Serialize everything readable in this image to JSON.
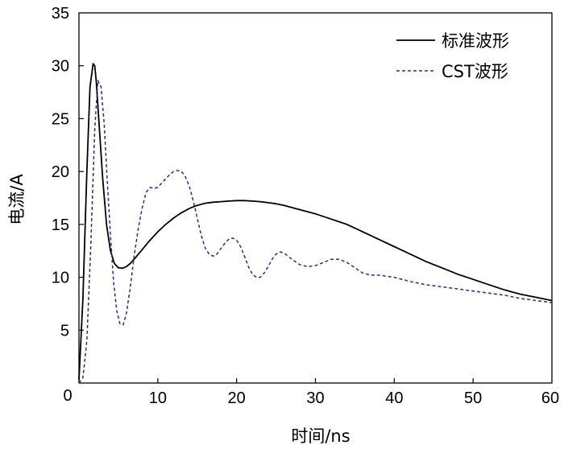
{
  "chart_data": {
    "type": "line",
    "title": "",
    "xlabel": "时间/ns",
    "ylabel": "电流/A",
    "xlim": [
      0,
      60
    ],
    "ylim": [
      0,
      35
    ],
    "xticks": [
      10,
      20,
      30,
      40,
      50,
      60
    ],
    "yticks": [
      0,
      5,
      10,
      15,
      20,
      25,
      30,
      35
    ],
    "grid": false,
    "legend_position": "top-right",
    "series": [
      {
        "name": "标准波形",
        "style": "solid",
        "color": "#000000",
        "x": [
          0,
          0.5,
          1.0,
          1.4,
          1.8,
          2.0,
          2.2,
          2.6,
          3.0,
          3.5,
          4.0,
          4.5,
          5.0,
          5.5,
          6.0,
          6.5,
          7.0,
          8,
          9,
          10,
          11,
          12,
          13,
          14,
          15,
          16,
          17,
          18,
          19,
          20,
          21,
          22,
          23,
          24,
          25,
          26,
          28,
          30,
          32,
          34,
          36,
          38,
          40,
          42,
          44,
          46,
          48,
          50,
          52,
          54,
          56,
          58,
          60
        ],
        "y": [
          0.3,
          8,
          20,
          28,
          30.2,
          30,
          28.5,
          24,
          19.5,
          15,
          12.5,
          11.3,
          10.9,
          10.85,
          11.0,
          11.3,
          11.7,
          12.6,
          13.5,
          14.3,
          15.0,
          15.6,
          16.1,
          16.5,
          16.8,
          17.0,
          17.1,
          17.15,
          17.2,
          17.25,
          17.25,
          17.2,
          17.15,
          17.05,
          16.95,
          16.8,
          16.4,
          16.0,
          15.5,
          15.0,
          14.3,
          13.6,
          12.9,
          12.2,
          11.5,
          10.9,
          10.3,
          9.8,
          9.3,
          8.8,
          8.4,
          8.1,
          7.8
        ]
      },
      {
        "name": "CST波形",
        "style": "dashed",
        "color": "#2d2d86",
        "x": [
          0,
          0.5,
          1.0,
          1.5,
          2.0,
          2.4,
          2.8,
          3.2,
          3.6,
          4.0,
          4.4,
          4.8,
          5.2,
          5.6,
          6.0,
          6.5,
          7.0,
          7.5,
          8,
          8.5,
          9,
          9.5,
          10,
          10.5,
          11,
          11.5,
          12,
          12.5,
          13,
          13.5,
          14,
          14.5,
          15,
          15.5,
          16,
          16.5,
          17,
          17.5,
          18,
          18.5,
          19,
          19.5,
          20,
          20.5,
          21,
          21.5,
          22,
          22.5,
          23,
          23.5,
          24,
          24.5,
          25,
          25.5,
          26,
          26.5,
          27,
          28,
          29,
          30,
          31,
          32,
          33,
          34,
          35,
          36,
          37,
          38,
          40,
          42,
          44,
          46,
          48,
          50,
          52,
          54,
          56,
          58,
          60
        ],
        "y": [
          0,
          0.5,
          4,
          13,
          24,
          28.6,
          28,
          24.5,
          19,
          14,
          9.5,
          6.8,
          5.6,
          5.5,
          6.5,
          9,
          12,
          14.5,
          16.5,
          18,
          18.5,
          18.4,
          18.5,
          18.9,
          19.3,
          19.7,
          20.0,
          20.1,
          20.0,
          19.5,
          18.6,
          17.2,
          15.6,
          14.0,
          12.8,
          12.2,
          12.0,
          12.2,
          12.7,
          13.2,
          13.6,
          13.7,
          13.5,
          12.9,
          12.0,
          11.0,
          10.3,
          10.0,
          10.0,
          10.4,
          11.0,
          11.7,
          12.2,
          12.4,
          12.3,
          12.0,
          11.7,
          11.2,
          11.0,
          11.1,
          11.4,
          11.7,
          11.7,
          11.4,
          10.9,
          10.4,
          10.2,
          10.2,
          10.0,
          9.6,
          9.3,
          9.1,
          8.9,
          8.7,
          8.5,
          8.3,
          8.0,
          7.8,
          7.6
        ]
      }
    ]
  }
}
